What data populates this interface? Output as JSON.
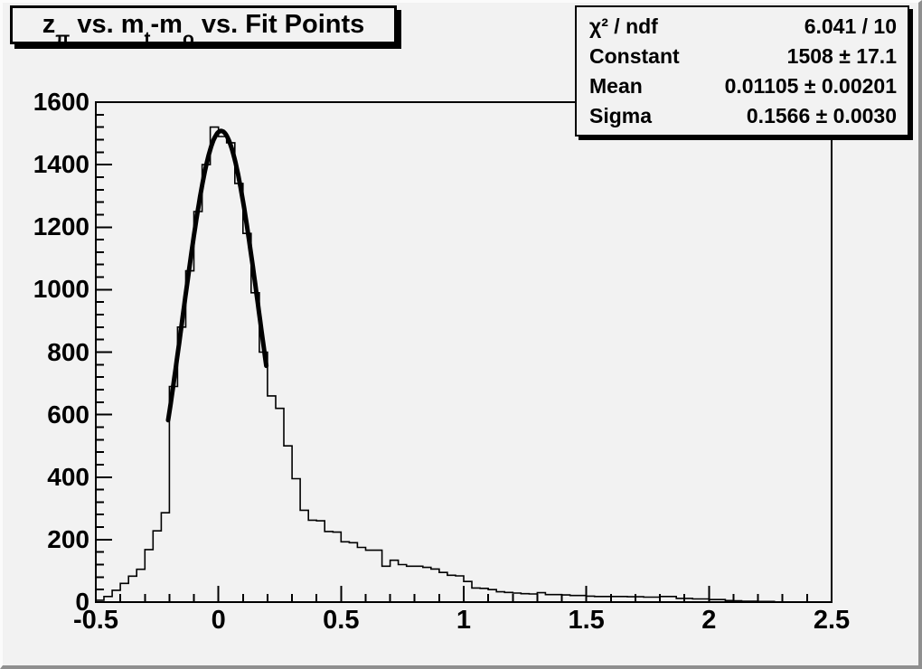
{
  "canvas": {
    "background": "#f2f2f2",
    "bevel_light": "#fbfbfb",
    "bevel_dark": "#8f8f8f",
    "line_color": "#000000"
  },
  "title_box": {
    "plain": "z_π vs. m_t-m_o vs. Fit Points",
    "parts": [
      {
        "text": "z",
        "sub": "π"
      },
      {
        "text": " vs. m",
        "sub": "t"
      },
      {
        "text": "-m",
        "sub": "o"
      },
      {
        "text": " vs. Fit Points",
        "sub": ""
      }
    ]
  },
  "stats_box": {
    "rows": [
      {
        "label": "χ² / ndf",
        "value": "6.041 / 10"
      },
      {
        "label": "Constant",
        "value": "1508 ± 17.1"
      },
      {
        "label": "Mean",
        "value": "0.01105 ± 0.00201"
      },
      {
        "label": "Sigma",
        "value": "0.1566 ± 0.0030"
      }
    ]
  },
  "chart_data": {
    "type": "bar",
    "subtype": "step-histogram",
    "title": "z_π vs. m_t-m_o vs. Fit Points",
    "xlabel": "",
    "ylabel": "",
    "xlim": [
      -0.5,
      2.5
    ],
    "ylim": [
      0,
      1600
    ],
    "grid": false,
    "legend": false,
    "bin_start": -0.5,
    "bin_width": 0.0333333,
    "values": [
      6,
      18,
      38,
      60,
      83,
      105,
      168,
      228,
      286,
      690,
      880,
      1060,
      1250,
      1400,
      1520,
      1490,
      1470,
      1340,
      1180,
      990,
      800,
      660,
      620,
      500,
      395,
      294,
      262,
      260,
      226,
      224,
      193,
      190,
      175,
      166,
      166,
      115,
      134,
      120,
      115,
      115,
      111,
      106,
      95,
      86,
      84,
      66,
      45,
      44,
      40,
      33,
      31,
      29,
      27,
      26,
      30,
      24,
      24,
      23,
      21,
      21,
      19,
      18,
      18,
      18,
      18,
      17,
      17,
      16,
      16,
      18,
      18,
      12,
      12,
      10,
      10,
      8,
      8,
      5,
      4,
      3,
      3,
      2,
      2,
      0,
      0,
      0,
      0,
      0,
      0,
      0
    ],
    "x_ticks": [
      {
        "value": -0.5,
        "label": "-0.5"
      },
      {
        "value": 0,
        "label": "0"
      },
      {
        "value": 0.5,
        "label": "0.5"
      },
      {
        "value": 1,
        "label": "1"
      },
      {
        "value": 1.5,
        "label": "1.5"
      },
      {
        "value": 2,
        "label": "2"
      },
      {
        "value": 2.5,
        "label": "2.5"
      }
    ],
    "x_minor_step": 0.1,
    "y_ticks": [
      {
        "value": 0,
        "label": "0"
      },
      {
        "value": 200,
        "label": "200"
      },
      {
        "value": 400,
        "label": "400"
      },
      {
        "value": 600,
        "label": "600"
      },
      {
        "value": 800,
        "label": "800"
      },
      {
        "value": 1000,
        "label": "1000"
      },
      {
        "value": 1200,
        "label": "1200"
      },
      {
        "value": 1400,
        "label": "1400"
      },
      {
        "value": 1600,
        "label": "1600"
      }
    ],
    "y_minor_step": 40,
    "fit": {
      "type": "gaussian",
      "constant": 1508,
      "mean": 0.01105,
      "sigma": 0.1566,
      "range": [
        -0.205,
        0.195
      ]
    },
    "colors": {
      "histogram_line": "#000000",
      "fit_line": "#000000",
      "background": "#f2f2f2"
    }
  }
}
